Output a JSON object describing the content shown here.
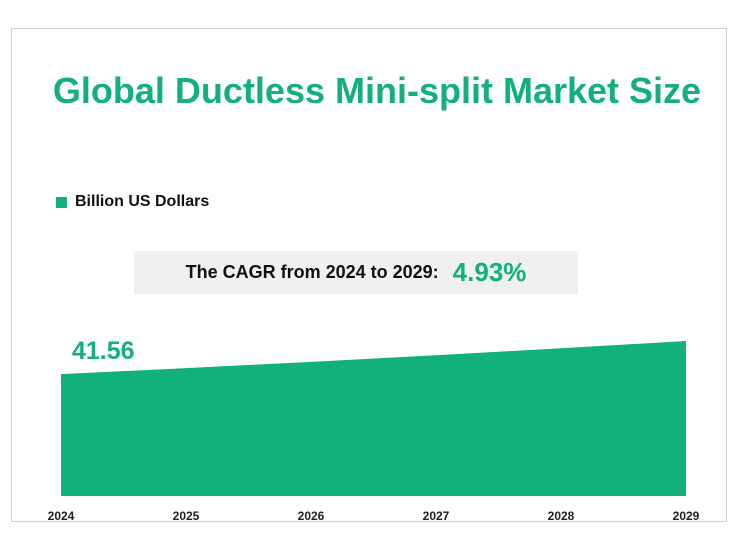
{
  "chart_data": {
    "type": "area",
    "title": "Global Ductless Mini-split Market Size",
    "legend": {
      "label": "Billion US Dollars",
      "placement": "top-left"
    },
    "annotation": {
      "label": "The CAGR from 2024 to 2029:",
      "value": "4.93%"
    },
    "categories": [
      "2024",
      "2025",
      "2026",
      "2027",
      "2028",
      "2029"
    ],
    "series": [
      {
        "name": "Billion US Dollars",
        "values": [
          41.56,
          43.61,
          45.76,
          48.01,
          50.38,
          52.86
        ]
      }
    ],
    "data_labels": [
      {
        "index": 0,
        "text": "41.56"
      }
    ],
    "ylim": [
      0,
      52.86
    ],
    "grid": false,
    "colors": {
      "series": "#12b07a",
      "accent": "#12b07a"
    }
  }
}
